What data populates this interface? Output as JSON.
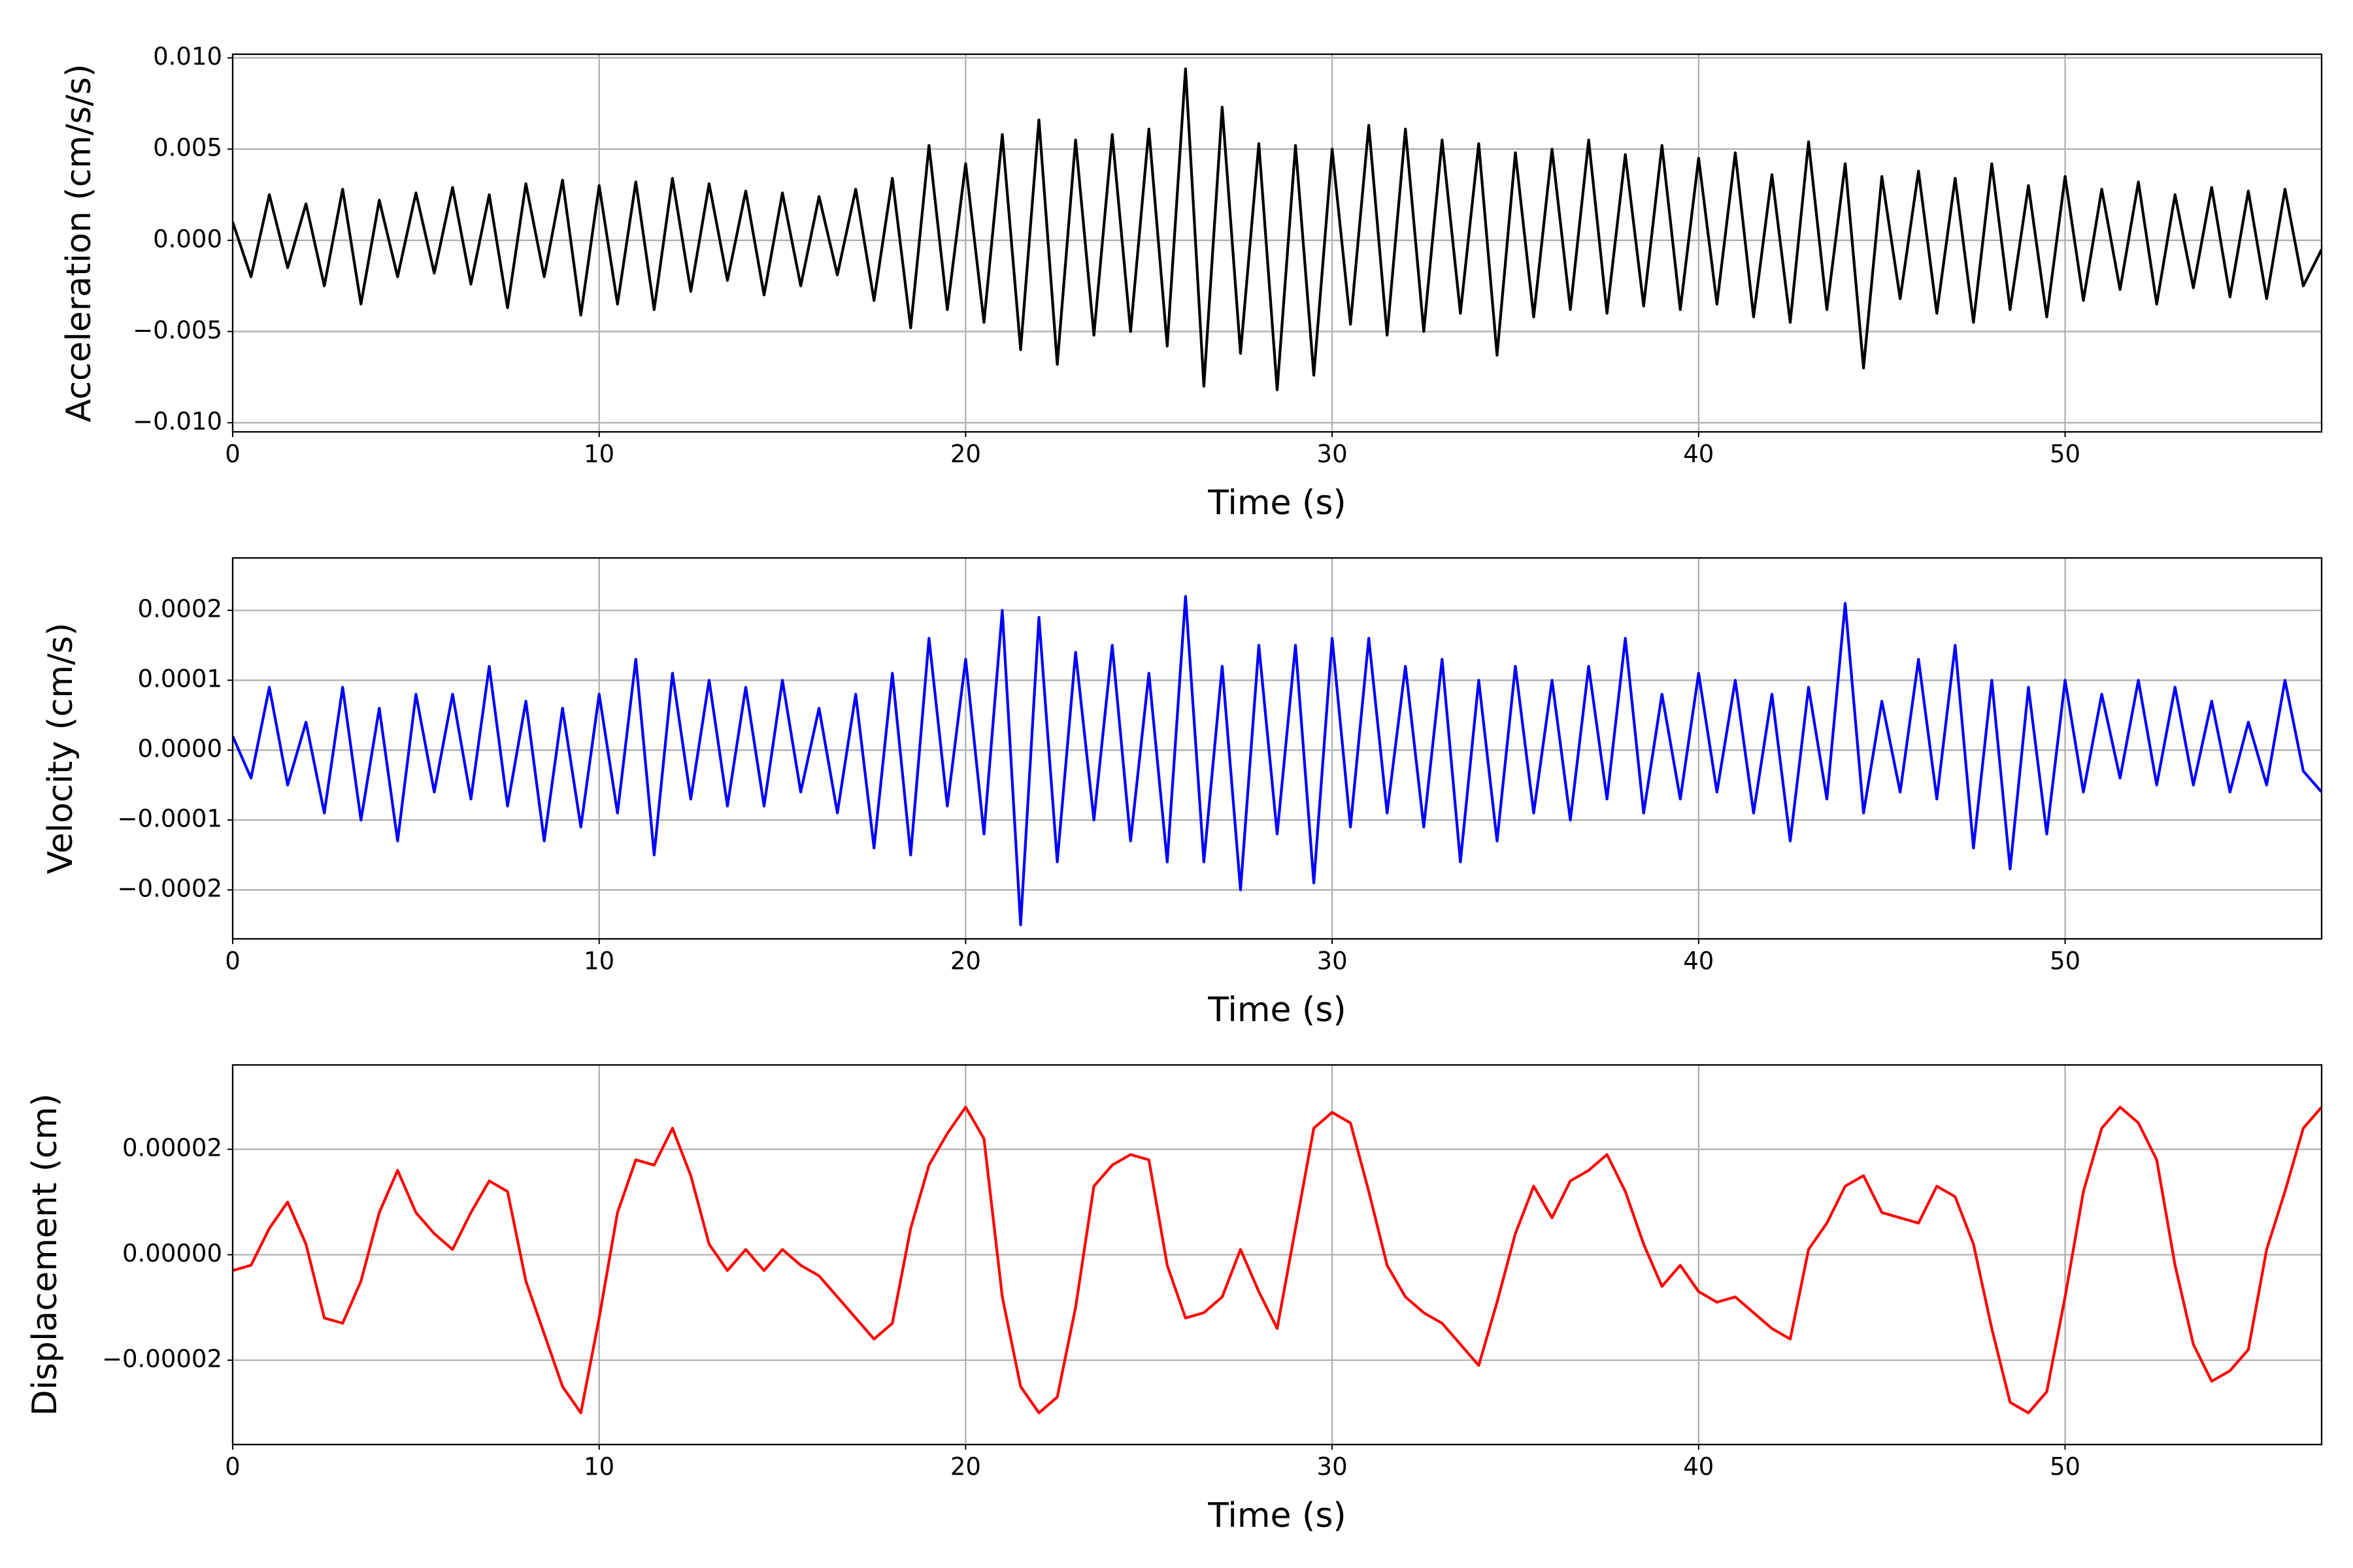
{
  "chart_data": [
    {
      "type": "line",
      "ylabel": "Acceleration (cm/s/s)",
      "xlabel": "Time (s)",
      "color": "#000000",
      "grid": true,
      "xlim": [
        0,
        57
      ],
      "xticks": [
        0,
        10,
        20,
        30,
        40,
        50
      ],
      "ylim": [
        -0.0105,
        0.0102
      ],
      "yticks": [
        {
          "value": -0.01,
          "label": "−0.010"
        },
        {
          "value": -0.005,
          "label": "−0.005"
        },
        {
          "value": 0,
          "label": "0.000"
        },
        0.005,
        {
          "value": 0.01,
          "label": "0.010"
        }
      ],
      "x": [
        0,
        0.5,
        1,
        1.5,
        2,
        2.5,
        3,
        3.5,
        4,
        4.5,
        5,
        5.5,
        6,
        6.5,
        7,
        7.5,
        8,
        8.5,
        9,
        9.5,
        10,
        10.5,
        11,
        11.5,
        12,
        12.5,
        13,
        13.5,
        14,
        14.5,
        15,
        15.5,
        16,
        16.5,
        17,
        17.5,
        18,
        18.5,
        19,
        19.5,
        20,
        20.5,
        21,
        21.5,
        22,
        22.5,
        23,
        23.5,
        24,
        24.5,
        25,
        25.5,
        26,
        26.5,
        27,
        27.5,
        28,
        28.5,
        29,
        29.5,
        30,
        30.5,
        31,
        31.5,
        32,
        32.5,
        33,
        33.5,
        34,
        34.5,
        35,
        35.5,
        36,
        36.5,
        37,
        37.5,
        38,
        38.5,
        39,
        39.5,
        40,
        40.5,
        41,
        41.5,
        42,
        42.5,
        43,
        43.5,
        44,
        44.5,
        45,
        45.5,
        46,
        46.5,
        47,
        47.5,
        48,
        48.5,
        49,
        49.5,
        50,
        50.5,
        51,
        51.5,
        52,
        52.5,
        53,
        53.5,
        54,
        54.5,
        55,
        55.5,
        56,
        56.5,
        57
      ],
      "values": [
        0.001,
        -0.002,
        0.0025,
        -0.0015,
        0.002,
        -0.0025,
        0.0028,
        -0.0035,
        0.0022,
        -0.002,
        0.0026,
        -0.0018,
        0.0029,
        -0.0024,
        0.0025,
        -0.0037,
        0.0031,
        -0.002,
        0.0033,
        -0.0041,
        0.003,
        -0.0035,
        0.0032,
        -0.0038,
        0.0034,
        -0.0028,
        0.0031,
        -0.0022,
        0.0027,
        -0.003,
        0.0026,
        -0.0025,
        0.0024,
        -0.0019,
        0.0028,
        -0.0033,
        0.0034,
        -0.0048,
        0.0052,
        -0.0038,
        0.0042,
        -0.0045,
        0.0058,
        -0.006,
        0.0066,
        -0.0068,
        0.0055,
        -0.0052,
        0.0058,
        -0.005,
        0.0061,
        -0.0058,
        0.0094,
        -0.008,
        0.0073,
        -0.0062,
        0.0053,
        -0.0082,
        0.0052,
        -0.0074,
        0.005,
        -0.0046,
        0.0063,
        -0.0052,
        0.0061,
        -0.005,
        0.0055,
        -0.004,
        0.0053,
        -0.0063,
        0.0048,
        -0.0042,
        0.005,
        -0.0038,
        0.0055,
        -0.004,
        0.0047,
        -0.0036,
        0.0052,
        -0.0038,
        0.0045,
        -0.0035,
        0.0048,
        -0.0042,
        0.0036,
        -0.0045,
        0.0054,
        -0.0038,
        0.0042,
        -0.007,
        0.0035,
        -0.0032,
        0.0038,
        -0.004,
        0.0034,
        -0.0045,
        0.0042,
        -0.0038,
        0.003,
        -0.0042,
        0.0035,
        -0.0033,
        0.0028,
        -0.0027,
        0.0032,
        -0.0035,
        0.0025,
        -0.0026,
        0.0029,
        -0.0031,
        0.0027,
        -0.0032,
        0.0028,
        -0.0025,
        -0.0005
      ]
    },
    {
      "type": "line",
      "ylabel": "Velocity (cm/s)",
      "xlabel": "Time (s)",
      "color": "#0000ff",
      "grid": true,
      "xlim": [
        0,
        57
      ],
      "xticks": [
        0,
        10,
        20,
        30,
        40,
        50
      ],
      "ylim": [
        -0.00027,
        0.000275
      ],
      "yticks": [
        {
          "value": -0.0002,
          "label": "−0.0002"
        },
        {
          "value": -0.0001,
          "label": "−0.0001"
        },
        {
          "value": 0,
          "label": "0.0000"
        },
        0.0001,
        0.0002
      ],
      "x": [
        0,
        0.5,
        1,
        1.5,
        2,
        2.5,
        3,
        3.5,
        4,
        4.5,
        5,
        5.5,
        6,
        6.5,
        7,
        7.5,
        8,
        8.5,
        9,
        9.5,
        10,
        10.5,
        11,
        11.5,
        12,
        12.5,
        13,
        13.5,
        14,
        14.5,
        15,
        15.5,
        16,
        16.5,
        17,
        17.5,
        18,
        18.5,
        19,
        19.5,
        20,
        20.5,
        21,
        21.5,
        22,
        22.5,
        23,
        23.5,
        24,
        24.5,
        25,
        25.5,
        26,
        26.5,
        27,
        27.5,
        28,
        28.5,
        29,
        29.5,
        30,
        30.5,
        31,
        31.5,
        32,
        32.5,
        33,
        33.5,
        34,
        34.5,
        35,
        35.5,
        36,
        36.5,
        37,
        37.5,
        38,
        38.5,
        39,
        39.5,
        40,
        40.5,
        41,
        41.5,
        42,
        42.5,
        43,
        43.5,
        44,
        44.5,
        45,
        45.5,
        46,
        46.5,
        47,
        47.5,
        48,
        48.5,
        49,
        49.5,
        50,
        50.5,
        51,
        51.5,
        52,
        52.5,
        53,
        53.5,
        54,
        54.5,
        55,
        55.5,
        56,
        56.5,
        57
      ],
      "values": [
        2e-05,
        -4e-05,
        9e-05,
        -5e-05,
        4e-05,
        -9e-05,
        9e-05,
        -0.0001,
        6e-05,
        -0.00013,
        8e-05,
        -6e-05,
        8e-05,
        -7e-05,
        0.00012,
        -8e-05,
        7e-05,
        -0.00013,
        6e-05,
        -0.00011,
        8e-05,
        -9e-05,
        0.00013,
        -0.00015,
        0.00011,
        -7e-05,
        0.0001,
        -8e-05,
        9e-05,
        -8e-05,
        0.0001,
        -6e-05,
        6e-05,
        -9e-05,
        8e-05,
        -0.00014,
        0.00011,
        -0.00015,
        0.00016,
        -8e-05,
        0.00013,
        -0.00012,
        0.0002,
        -0.00025,
        0.00019,
        -0.00016,
        0.00014,
        -0.0001,
        0.00015,
        -0.00013,
        0.00011,
        -0.00016,
        0.00022,
        -0.00016,
        0.00012,
        -0.0002,
        0.00015,
        -0.00012,
        0.00015,
        -0.00019,
        0.00016,
        -0.00011,
        0.00016,
        -9e-05,
        0.00012,
        -0.00011,
        0.00013,
        -0.00016,
        0.0001,
        -0.00013,
        0.00012,
        -9e-05,
        0.0001,
        -0.0001,
        0.00012,
        -7e-05,
        0.00016,
        -9e-05,
        8e-05,
        -7e-05,
        0.00011,
        -6e-05,
        0.0001,
        -9e-05,
        8e-05,
        -0.00013,
        9e-05,
        -7e-05,
        0.00021,
        -9e-05,
        7e-05,
        -6e-05,
        0.00013,
        -7e-05,
        0.00015,
        -0.00014,
        0.0001,
        -0.00017,
        9e-05,
        -0.00012,
        0.0001,
        -6e-05,
        8e-05,
        -4e-05,
        0.0001,
        -5e-05,
        9e-05,
        -5e-05,
        7e-05,
        -6e-05,
        4e-05,
        -5e-05,
        0.0001,
        -3e-05,
        -6e-05
      ]
    },
    {
      "type": "line",
      "ylabel": "Displacement (cm)",
      "xlabel": "Time (s)",
      "color": "#ff0000",
      "grid": true,
      "xlim": [
        0,
        57
      ],
      "xticks": [
        0,
        10,
        20,
        30,
        40,
        50
      ],
      "ylim": [
        -3.6e-05,
        3.6e-05
      ],
      "yticks": [
        {
          "value": -2e-05,
          "label": "−0.00002"
        },
        {
          "value": 0,
          "label": "0.00000"
        },
        2e-05
      ],
      "x": [
        0,
        0.5,
        1,
        1.5,
        2,
        2.5,
        3,
        3.5,
        4,
        4.5,
        5,
        5.5,
        6,
        6.5,
        7,
        7.5,
        8,
        8.5,
        9,
        9.5,
        10,
        10.5,
        11,
        11.5,
        12,
        12.5,
        13,
        13.5,
        14,
        14.5,
        15,
        15.5,
        16,
        16.5,
        17,
        17.5,
        18,
        18.5,
        19,
        19.5,
        20,
        20.5,
        21,
        21.5,
        22,
        22.5,
        23,
        23.5,
        24,
        24.5,
        25,
        25.5,
        26,
        26.5,
        27,
        27.5,
        28,
        28.5,
        29,
        29.5,
        30,
        30.5,
        31,
        31.5,
        32,
        32.5,
        33,
        33.5,
        34,
        34.5,
        35,
        35.5,
        36,
        36.5,
        37,
        37.5,
        38,
        38.5,
        39,
        39.5,
        40,
        40.5,
        41,
        41.5,
        42,
        42.5,
        43,
        43.5,
        44,
        44.5,
        45,
        45.5,
        46,
        46.5,
        47,
        47.5,
        48,
        48.5,
        49,
        49.5,
        50,
        50.5,
        51,
        51.5,
        52,
        52.5,
        53,
        53.5,
        54,
        54.5,
        55,
        55.5,
        56,
        56.5,
        57
      ],
      "values": [
        -3e-06,
        -2e-06,
        5e-06,
        1e-05,
        2e-06,
        -1.2e-05,
        -1.3e-05,
        -5e-06,
        8e-06,
        1.6e-05,
        8e-06,
        4e-06,
        1e-06,
        8e-06,
        1.4e-05,
        1.2e-05,
        -5e-06,
        -1.5e-05,
        -2.5e-05,
        -3e-05,
        -1.2e-05,
        8e-06,
        1.8e-05,
        1.7e-05,
        2.4e-05,
        1.5e-05,
        2e-06,
        -3e-06,
        1e-06,
        -3e-06,
        1e-06,
        -2e-06,
        -4e-06,
        -8e-06,
        -1.2e-05,
        -1.6e-05,
        -1.3e-05,
        5e-06,
        1.7e-05,
        2.3e-05,
        2.8e-05,
        2.2e-05,
        -8e-06,
        -2.5e-05,
        -3e-05,
        -2.7e-05,
        -1e-05,
        1.3e-05,
        1.7e-05,
        1.9e-05,
        1.8e-05,
        -2e-06,
        -1.2e-05,
        -1.1e-05,
        -8e-06,
        1e-06,
        -7e-06,
        -1.4e-05,
        5e-06,
        2.4e-05,
        2.7e-05,
        2.5e-05,
        1.2e-05,
        -2e-06,
        -8e-06,
        -1.1e-05,
        -1.3e-05,
        -1.7e-05,
        -2.1e-05,
        -9e-06,
        4e-06,
        1.3e-05,
        7e-06,
        1.4e-05,
        1.6e-05,
        1.9e-05,
        1.2e-05,
        2e-06,
        -6e-06,
        -2e-06,
        -7e-06,
        -9e-06,
        -8e-06,
        -1.1e-05,
        -1.4e-05,
        -1.6e-05,
        1e-06,
        6e-06,
        1.3e-05,
        1.5e-05,
        8e-06,
        7e-06,
        6e-06,
        1.3e-05,
        1.1e-05,
        2e-06,
        -1.4e-05,
        -2.8e-05,
        -3e-05,
        -2.6e-05,
        -8e-06,
        1.2e-05,
        2.4e-05,
        2.8e-05,
        2.5e-05,
        1.8e-05,
        -2e-06,
        -1.7e-05,
        -2.4e-05,
        -2.2e-05,
        -1.8e-05,
        1e-06,
        1.2e-05,
        2.4e-05,
        2.8e-05
      ]
    }
  ]
}
